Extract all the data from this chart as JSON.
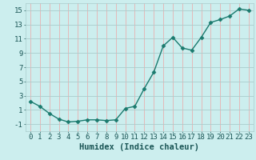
{
  "x": [
    0,
    1,
    2,
    3,
    4,
    5,
    6,
    7,
    8,
    9,
    10,
    11,
    12,
    13,
    14,
    15,
    16,
    17,
    18,
    19,
    20,
    21,
    22,
    23
  ],
  "y": [
    2.2,
    1.5,
    0.5,
    -0.3,
    -0.7,
    -0.6,
    -0.4,
    -0.4,
    -0.5,
    -0.4,
    1.2,
    1.5,
    4.0,
    6.3,
    10.0,
    11.2,
    9.7,
    9.4,
    11.2,
    13.3,
    13.7,
    14.2,
    15.2,
    15.0
  ],
  "line_color": "#1a7a6e",
  "marker": "D",
  "marker_size": 2.5,
  "bg_color": "#cceeee",
  "grid_color_x": "#e8b0b0",
  "grid_color_y": "#aacccc",
  "xlabel": "Humidex (Indice chaleur)",
  "xlabel_color": "#1a5555",
  "tick_color": "#1a5555",
  "xlim": [
    -0.5,
    23.5
  ],
  "ylim": [
    -2,
    16
  ],
  "yticks": [
    -1,
    1,
    3,
    5,
    7,
    9,
    11,
    13,
    15
  ],
  "xticks": [
    0,
    1,
    2,
    3,
    4,
    5,
    6,
    7,
    8,
    9,
    10,
    11,
    12,
    13,
    14,
    15,
    16,
    17,
    18,
    19,
    20,
    21,
    22,
    23
  ],
  "line_width": 1.0,
  "font_size_label": 7.5,
  "font_size_tick": 6.5
}
